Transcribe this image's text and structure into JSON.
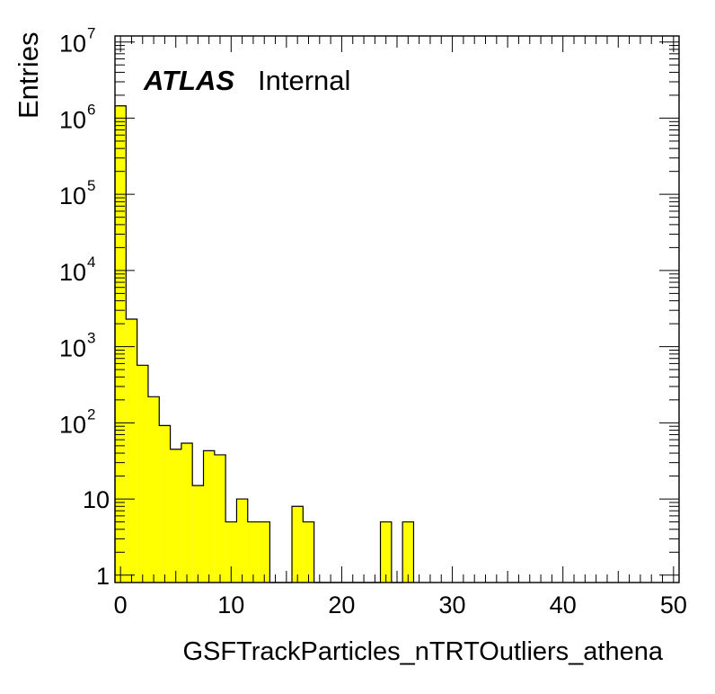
{
  "chart_data": {
    "type": "bar",
    "histogram": true,
    "xlabel": "GSFTrackParticles_nTRTOutliers_athena",
    "ylabel": "Entries",
    "xlim": [
      -0.5,
      50.5
    ],
    "ylim": [
      0.8,
      12000000
    ],
    "yscale": "log",
    "bin_width": 1,
    "fill_color": "#ffff00",
    "edge_color": "#000000",
    "grid": false,
    "x_ticks": [
      {
        "value": 0,
        "label": "0"
      },
      {
        "value": 10,
        "label": "10"
      },
      {
        "value": 20,
        "label": "20"
      },
      {
        "value": 30,
        "label": "30"
      },
      {
        "value": 40,
        "label": "40"
      },
      {
        "value": 50,
        "label": "50"
      }
    ],
    "y_ticks": [
      {
        "value": 1,
        "base": "1",
        "exp": ""
      },
      {
        "value": 10,
        "base": "10",
        "exp": ""
      },
      {
        "value": 100,
        "base": "10",
        "exp": "2"
      },
      {
        "value": 1000,
        "base": "10",
        "exp": "3"
      },
      {
        "value": 10000,
        "base": "10",
        "exp": "4"
      },
      {
        "value": 100000,
        "base": "10",
        "exp": "5"
      },
      {
        "value": 1000000,
        "base": "10",
        "exp": "6"
      },
      {
        "value": 10000000,
        "base": "10",
        "exp": "7"
      }
    ],
    "bins": [
      {
        "x": 0,
        "value": 1450000
      },
      {
        "x": 1,
        "value": 2300
      },
      {
        "x": 2,
        "value": 570
      },
      {
        "x": 3,
        "value": 220
      },
      {
        "x": 4,
        "value": 92
      },
      {
        "x": 5,
        "value": 45
      },
      {
        "x": 6,
        "value": 54
      },
      {
        "x": 7,
        "value": 15
      },
      {
        "x": 8,
        "value": 43
      },
      {
        "x": 9,
        "value": 38
      },
      {
        "x": 10,
        "value": 5
      },
      {
        "x": 11,
        "value": 10
      },
      {
        "x": 12,
        "value": 5
      },
      {
        "x": 13,
        "value": 5
      },
      {
        "x": 14,
        "value": 0
      },
      {
        "x": 15,
        "value": 0
      },
      {
        "x": 16,
        "value": 8
      },
      {
        "x": 17,
        "value": 5
      },
      {
        "x": 18,
        "value": 0
      },
      {
        "x": 19,
        "value": 0
      },
      {
        "x": 20,
        "value": 0
      },
      {
        "x": 21,
        "value": 0
      },
      {
        "x": 22,
        "value": 0
      },
      {
        "x": 23,
        "value": 0
      },
      {
        "x": 24,
        "value": 5
      },
      {
        "x": 25,
        "value": 0
      },
      {
        "x": 26,
        "value": 5
      }
    ],
    "annotations": {
      "experiment": "ATLAS",
      "status": "Internal"
    }
  }
}
